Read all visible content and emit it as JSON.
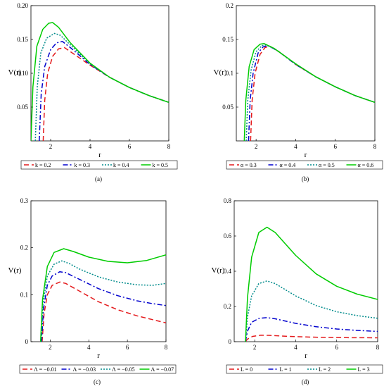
{
  "chart_data": [
    {
      "id": "a",
      "type": "line",
      "caption": "(a)",
      "xlabel": "r",
      "ylabel": "V(r)",
      "xlim": [
        1,
        8
      ],
      "ylim": [
        0,
        0.2
      ],
      "xticks": [
        {
          "v": 2,
          "label": "2"
        },
        {
          "v": 4,
          "label": "4"
        },
        {
          "v": 6,
          "label": "6"
        },
        {
          "v": 8,
          "label": "8"
        }
      ],
      "yticks": [
        {
          "v": 0.05,
          "label": "0.05"
        },
        {
          "v": 0.1,
          "label": "0.10"
        },
        {
          "v": 0.15,
          "label": "0.15"
        },
        {
          "v": 0.2,
          "label": "0.20"
        }
      ],
      "legend_position": "bottom",
      "series": [
        {
          "name": "k = 0.2",
          "color": "#e41a1c",
          "dash": "7,4",
          "points": [
            [
              1.62,
              0
            ],
            [
              1.7,
              0.06
            ],
            [
              1.85,
              0.1
            ],
            [
              2.1,
              0.125
            ],
            [
              2.4,
              0.136
            ],
            [
              2.7,
              0.138
            ],
            [
              3.2,
              0.128
            ],
            [
              4,
              0.112
            ],
            [
              5,
              0.094
            ],
            [
              6,
              0.079
            ],
            [
              7,
              0.067
            ],
            [
              8,
              0.057
            ]
          ]
        },
        {
          "name": "k = 0.3",
          "color": "#0000cd",
          "dash": "7,3,2,3",
          "points": [
            [
              1.42,
              0
            ],
            [
              1.52,
              0.07
            ],
            [
              1.7,
              0.11
            ],
            [
              2.0,
              0.135
            ],
            [
              2.3,
              0.145
            ],
            [
              2.6,
              0.147
            ],
            [
              3.0,
              0.138
            ],
            [
              4,
              0.113
            ],
            [
              5,
              0.094
            ],
            [
              6,
              0.079
            ],
            [
              7,
              0.067
            ],
            [
              8,
              0.057
            ]
          ]
        },
        {
          "name": "k = 0.4",
          "color": "#008b8b",
          "dash": "2,2",
          "points": [
            [
              1.22,
              0
            ],
            [
              1.32,
              0.08
            ],
            [
              1.5,
              0.13
            ],
            [
              1.8,
              0.152
            ],
            [
              2.2,
              0.159
            ],
            [
              2.5,
              0.156
            ],
            [
              3.0,
              0.142
            ],
            [
              4,
              0.114
            ],
            [
              5,
              0.094
            ],
            [
              6,
              0.079
            ],
            [
              7,
              0.067
            ],
            [
              8,
              0.057
            ]
          ]
        },
        {
          "name": "k = 0.5",
          "color": "#00cc00",
          "dash": "",
          "points": [
            [
              1.0,
              0
            ],
            [
              1.1,
              0.08
            ],
            [
              1.3,
              0.14
            ],
            [
              1.6,
              0.165
            ],
            [
              1.9,
              0.174
            ],
            [
              2.1,
              0.175
            ],
            [
              2.4,
              0.168
            ],
            [
              3.0,
              0.145
            ],
            [
              4,
              0.115
            ],
            [
              5,
              0.094
            ],
            [
              6,
              0.079
            ],
            [
              7,
              0.067
            ],
            [
              8,
              0.057
            ]
          ]
        }
      ]
    },
    {
      "id": "b",
      "type": "line",
      "caption": "(b)",
      "xlabel": "r",
      "ylabel": "V(r)",
      "xlim": [
        1,
        8
      ],
      "ylim": [
        0,
        0.2
      ],
      "xticks": [
        {
          "v": 2,
          "label": "2"
        },
        {
          "v": 4,
          "label": "4"
        },
        {
          "v": 6,
          "label": "6"
        },
        {
          "v": 8,
          "label": "8"
        }
      ],
      "yticks": [
        {
          "v": 0.05,
          "label": "0.05"
        },
        {
          "v": 0.1,
          "label": "0.1"
        },
        {
          "v": 0.15,
          "label": "0.15"
        },
        {
          "v": 0.2,
          "label": "0.2"
        }
      ],
      "legend_position": "bottom",
      "series": [
        {
          "name": "α = 0.3",
          "color": "#e41a1c",
          "dash": "7,4",
          "points": [
            [
              1.72,
              0
            ],
            [
              1.8,
              0.06
            ],
            [
              1.95,
              0.1
            ],
            [
              2.2,
              0.128
            ],
            [
              2.45,
              0.138
            ],
            [
              2.7,
              0.14
            ],
            [
              3.2,
              0.131
            ],
            [
              4,
              0.113
            ],
            [
              5,
              0.095
            ],
            [
              6,
              0.08
            ],
            [
              7,
              0.067
            ],
            [
              8,
              0.057
            ]
          ]
        },
        {
          "name": "α = 0.4",
          "color": "#0000cd",
          "dash": "7,3,2,3",
          "points": [
            [
              1.62,
              0
            ],
            [
              1.7,
              0.06
            ],
            [
              1.85,
              0.1
            ],
            [
              2.1,
              0.13
            ],
            [
              2.35,
              0.139
            ],
            [
              2.6,
              0.141
            ],
            [
              3.1,
              0.133
            ],
            [
              4,
              0.113
            ],
            [
              5,
              0.095
            ],
            [
              6,
              0.08
            ],
            [
              7,
              0.067
            ],
            [
              8,
              0.057
            ]
          ]
        },
        {
          "name": "α = 0.5",
          "color": "#008b8b",
          "dash": "2,2",
          "points": [
            [
              1.5,
              0
            ],
            [
              1.58,
              0.06
            ],
            [
              1.75,
              0.105
            ],
            [
              2.0,
              0.132
            ],
            [
              2.3,
              0.141
            ],
            [
              2.5,
              0.142
            ],
            [
              3.0,
              0.135
            ],
            [
              4,
              0.114
            ],
            [
              5,
              0.095
            ],
            [
              6,
              0.08
            ],
            [
              7,
              0.067
            ],
            [
              8,
              0.057
            ]
          ]
        },
        {
          "name": "α = 0.6",
          "color": "#00cc00",
          "dash": "",
          "points": [
            [
              1.4,
              0
            ],
            [
              1.48,
              0.06
            ],
            [
              1.65,
              0.11
            ],
            [
              1.9,
              0.135
            ],
            [
              2.2,
              0.143
            ],
            [
              2.4,
              0.144
            ],
            [
              2.9,
              0.137
            ],
            [
              4,
              0.114
            ],
            [
              5,
              0.095
            ],
            [
              6,
              0.08
            ],
            [
              7,
              0.067
            ],
            [
              8,
              0.057
            ]
          ]
        }
      ]
    },
    {
      "id": "c",
      "type": "line",
      "caption": "(c)",
      "xlabel": "r",
      "ylabel": "V(r)",
      "xlim": [
        1,
        8
      ],
      "ylim": [
        0,
        0.3
      ],
      "xticks": [
        {
          "v": 2,
          "label": "2"
        },
        {
          "v": 4,
          "label": "4"
        },
        {
          "v": 6,
          "label": "6"
        },
        {
          "v": 8,
          "label": "8"
        }
      ],
      "yticks": [
        {
          "v": 0,
          "label": "0"
        },
        {
          "v": 0.1,
          "label": "0.1"
        },
        {
          "v": 0.2,
          "label": "0.2"
        },
        {
          "v": 0.3,
          "label": "0.3"
        }
      ],
      "legend_position": "bottom",
      "series": [
        {
          "name": "Λ = −0.01",
          "color": "#e41a1c",
          "dash": "7,4",
          "points": [
            [
              1.58,
              0
            ],
            [
              1.68,
              0.06
            ],
            [
              1.85,
              0.1
            ],
            [
              2.1,
              0.12
            ],
            [
              2.5,
              0.127
            ],
            [
              2.8,
              0.124
            ],
            [
              3.5,
              0.108
            ],
            [
              4.5,
              0.085
            ],
            [
              5.5,
              0.068
            ],
            [
              6.5,
              0.055
            ],
            [
              7.3,
              0.047
            ],
            [
              8,
              0.04
            ]
          ]
        },
        {
          "name": "Λ = −0.03",
          "color": "#0000cd",
          "dash": "7,3,2,3",
          "points": [
            [
              1.55,
              0
            ],
            [
              1.65,
              0.07
            ],
            [
              1.85,
              0.12
            ],
            [
              2.1,
              0.14
            ],
            [
              2.5,
              0.149
            ],
            [
              2.8,
              0.147
            ],
            [
              3.5,
              0.133
            ],
            [
              4.5,
              0.113
            ],
            [
              5.5,
              0.098
            ],
            [
              6.5,
              0.087
            ],
            [
              7.3,
              0.081
            ],
            [
              8,
              0.077
            ]
          ]
        },
        {
          "name": "Λ = −0.05",
          "color": "#008b8b",
          "dash": "2,2",
          "points": [
            [
              1.53,
              0
            ],
            [
              1.62,
              0.08
            ],
            [
              1.85,
              0.14
            ],
            [
              2.2,
              0.165
            ],
            [
              2.6,
              0.172
            ],
            [
              3.0,
              0.166
            ],
            [
              3.5,
              0.155
            ],
            [
              4.5,
              0.138
            ],
            [
              5.5,
              0.127
            ],
            [
              6.5,
              0.121
            ],
            [
              7.3,
              0.12
            ],
            [
              8,
              0.124
            ]
          ]
        },
        {
          "name": "Λ = −0.07",
          "color": "#00cc00",
          "dash": "",
          "points": [
            [
              1.5,
              0
            ],
            [
              1.6,
              0.09
            ],
            [
              1.85,
              0.16
            ],
            [
              2.2,
              0.19
            ],
            [
              2.7,
              0.198
            ],
            [
              3.2,
              0.192
            ],
            [
              4,
              0.18
            ],
            [
              5,
              0.171
            ],
            [
              6,
              0.168
            ],
            [
              7,
              0.173
            ],
            [
              8,
              0.185
            ]
          ]
        }
      ]
    },
    {
      "id": "d",
      "type": "line",
      "caption": "(d)",
      "xlabel": "r",
      "ylabel": "V(r)",
      "xlim": [
        1,
        8
      ],
      "ylim": [
        0,
        0.8
      ],
      "xticks": [
        {
          "v": 2,
          "label": "2"
        },
        {
          "v": 4,
          "label": "4"
        },
        {
          "v": 6,
          "label": "6"
        },
        {
          "v": 8,
          "label": "8"
        }
      ],
      "yticks": [
        {
          "v": 0,
          "label": "0"
        },
        {
          "v": 0.2,
          "label": "0.2"
        },
        {
          "v": 0.4,
          "label": "0.4"
        },
        {
          "v": 0.6,
          "label": "0.6"
        },
        {
          "v": 0.8,
          "label": "0.8"
        }
      ],
      "legend_position": "bottom",
      "series": [
        {
          "name": "L = 0",
          "color": "#e41a1c",
          "dash": "7,4",
          "points": [
            [
              1.55,
              0
            ],
            [
              1.65,
              0.015
            ],
            [
              1.9,
              0.03
            ],
            [
              2.3,
              0.037
            ],
            [
              2.7,
              0.036
            ],
            [
              3.5,
              0.031
            ],
            [
              4.5,
              0.027
            ],
            [
              5.5,
              0.024
            ],
            [
              6.5,
              0.023
            ],
            [
              8,
              0.022
            ]
          ]
        },
        {
          "name": "L = 1",
          "color": "#0000cd",
          "dash": "7,3,2,3",
          "points": [
            [
              1.55,
              0
            ],
            [
              1.65,
              0.06
            ],
            [
              1.85,
              0.11
            ],
            [
              2.2,
              0.132
            ],
            [
              2.6,
              0.137
            ],
            [
              3.0,
              0.13
            ],
            [
              4,
              0.104
            ],
            [
              5,
              0.085
            ],
            [
              6,
              0.072
            ],
            [
              7,
              0.064
            ],
            [
              8,
              0.058
            ]
          ]
        },
        {
          "name": "L = 2",
          "color": "#008b8b",
          "dash": "2,2",
          "points": [
            [
              1.55,
              0
            ],
            [
              1.65,
              0.14
            ],
            [
              1.85,
              0.26
            ],
            [
              2.2,
              0.33
            ],
            [
              2.6,
              0.345
            ],
            [
              3.0,
              0.33
            ],
            [
              4,
              0.26
            ],
            [
              5,
              0.205
            ],
            [
              6,
              0.17
            ],
            [
              7,
              0.148
            ],
            [
              8,
              0.133
            ]
          ]
        },
        {
          "name": "L = 3",
          "color": "#00cc00",
          "dash": "",
          "points": [
            [
              1.55,
              0
            ],
            [
              1.65,
              0.25
            ],
            [
              1.85,
              0.48
            ],
            [
              2.2,
              0.62
            ],
            [
              2.6,
              0.65
            ],
            [
              3.0,
              0.62
            ],
            [
              4,
              0.49
            ],
            [
              5,
              0.385
            ],
            [
              6,
              0.315
            ],
            [
              7,
              0.27
            ],
            [
              8,
              0.24
            ]
          ]
        }
      ]
    }
  ]
}
